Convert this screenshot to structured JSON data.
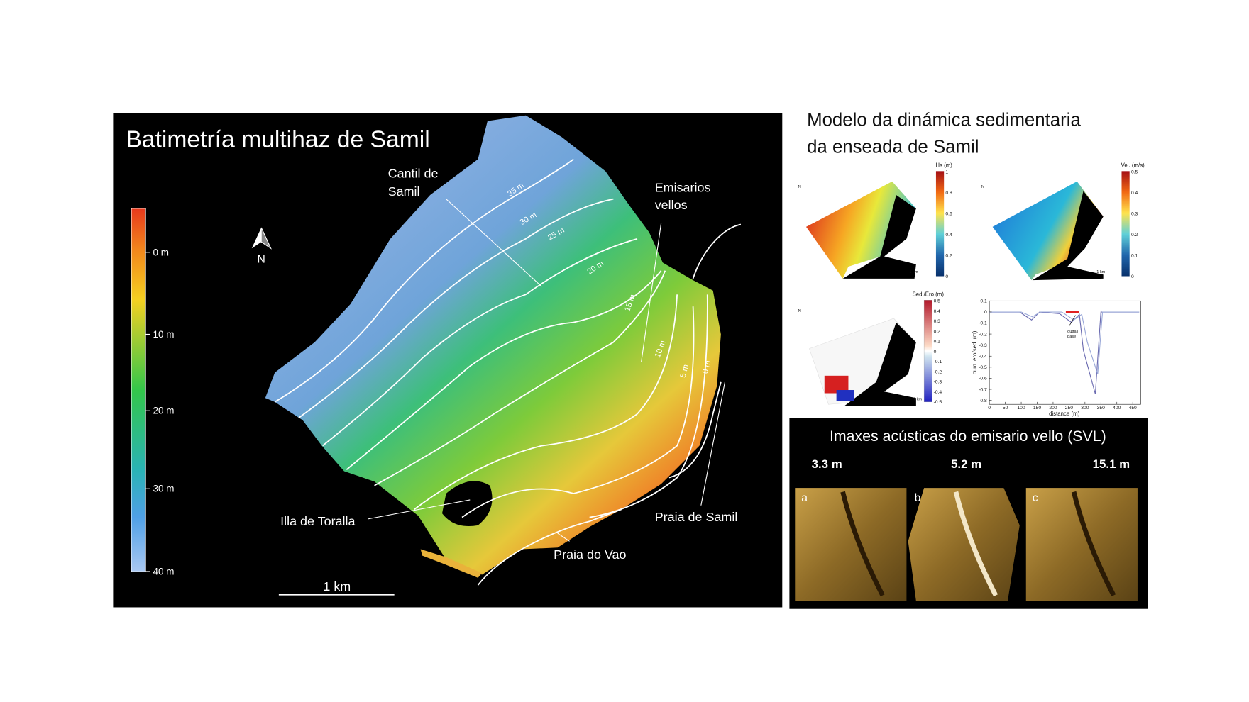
{
  "map_panel": {
    "title": "Batimetría multihaz de Samil",
    "depth_scale": [
      "0 m",
      "10 m",
      "20 m",
      "30 m",
      "40 m"
    ],
    "north": "N",
    "contours": [
      "35 m",
      "30 m",
      "25 m",
      "20 m",
      "15 m",
      "10 m",
      "5 m",
      "0 m"
    ],
    "labels": {
      "cliff": [
        "Cantil de",
        "Samil"
      ],
      "outfalls": [
        "Emisarios",
        "vellos"
      ],
      "island": "Illa de Toralla",
      "vao_beach": "Praia do Vao",
      "samil_beach": "Praia de Samil"
    },
    "scale_bar": "1 km"
  },
  "model_panel": {
    "title": [
      "Modelo da dinámica sedimentaria",
      "da enseada de Samil"
    ],
    "map_north": "N",
    "map_scale": "1 km",
    "wave_height": {
      "label": "Hs (m)",
      "ticks": [
        "1",
        "0.8",
        "0.6",
        "0.4",
        "0.2",
        "0"
      ]
    },
    "velocity": {
      "label": "Vel. (m/s)",
      "ticks": [
        "0.5",
        "0.4",
        "0.3",
        "0.2",
        "0.1",
        "0"
      ]
    },
    "sed_ero": {
      "label": "Sed./Ero (m)",
      "ticks": [
        "0.5",
        "0.4",
        "0.3",
        "0.2",
        "0.1",
        "0",
        "-0.1",
        "-0.2",
        "-0.3",
        "-0.4",
        "-0.5"
      ]
    },
    "profile": {
      "y_label": "cum. ero/sed. (m)",
      "x_label": "distance (m)",
      "yticks": [
        "0.1",
        "0",
        "-0.1",
        "-0.2",
        "-0.3",
        "-0.4",
        "-0.5",
        "-0.6",
        "-0.7",
        "-0.8"
      ],
      "xticks": [
        "0",
        "50",
        "100",
        "150",
        "200",
        "250",
        "300",
        "350",
        "400",
        "450"
      ],
      "annotation": [
        "outfall",
        "base"
      ]
    }
  },
  "acoustic_panel": {
    "title": "Imaxes acústicas do emisario vello  (SVL)",
    "depths": [
      "3.3 m",
      "5.2 m",
      "15.1 m"
    ],
    "images": [
      "a",
      "b",
      "c"
    ]
  }
}
